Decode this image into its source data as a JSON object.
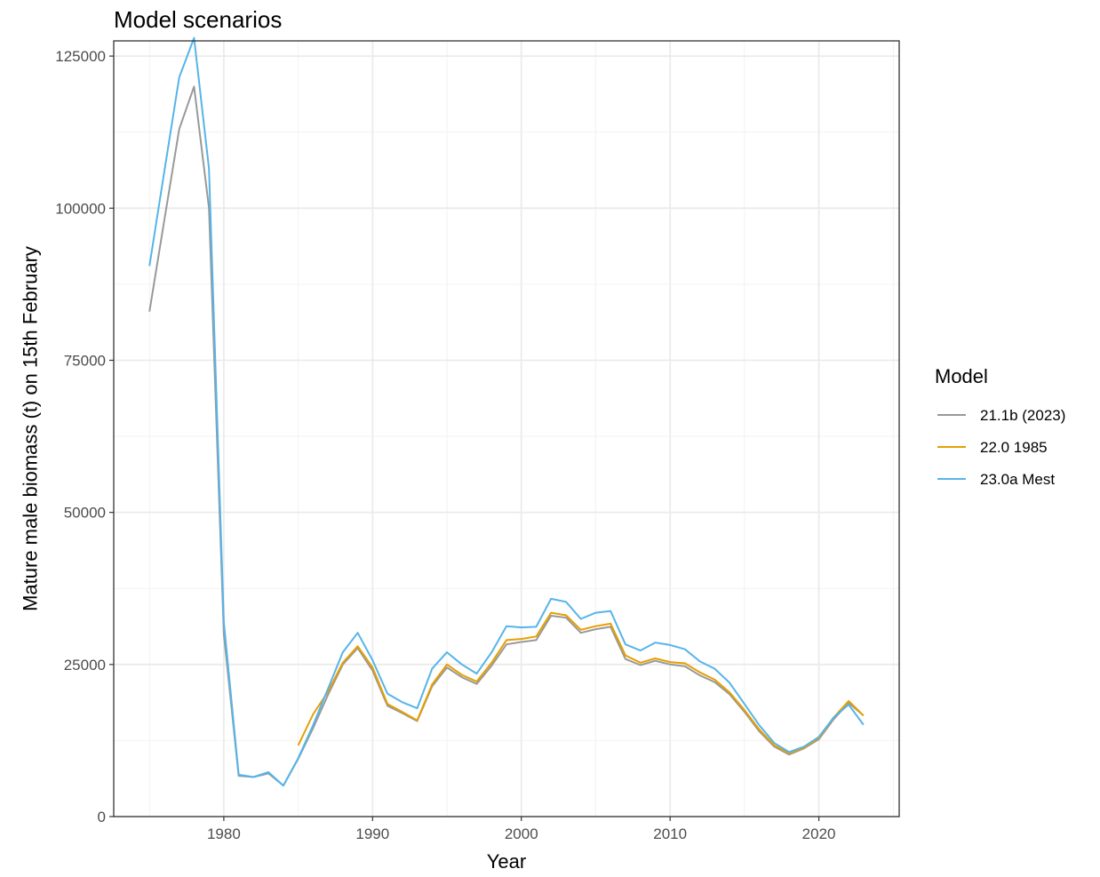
{
  "chart_data": {
    "type": "line",
    "title": "Model scenarios",
    "xlabel": "Year",
    "ylabel": "Mature male biomass (t) on 15th February",
    "xlim": [
      1972.6,
      2025.4
    ],
    "ylim": [
      0,
      127500
    ],
    "x_ticks": [
      1980,
      1990,
      2000,
      2010,
      2020
    ],
    "y_ticks": [
      0,
      25000,
      50000,
      75000,
      100000,
      125000
    ],
    "x_tick_labels": [
      "1980",
      "1990",
      "2000",
      "2010",
      "2020"
    ],
    "y_tick_labels": [
      "0",
      "25000",
      "50000",
      "75000",
      "100000",
      "125000"
    ],
    "grid": true,
    "legend": {
      "title": "Model",
      "position": "right"
    },
    "series": [
      {
        "name": "21.1b (2023)",
        "color": "#999999",
        "x": [
          1975,
          1976,
          1977,
          1978,
          1979,
          1980,
          1981,
          1982,
          1983,
          1984,
          1985,
          1986,
          1987,
          1988,
          1989,
          1990,
          1991,
          1992,
          1993,
          1994,
          1995,
          1996,
          1997,
          1998,
          1999,
          2000,
          2001,
          2002,
          2003,
          2004,
          2005,
          2006,
          2007,
          2008,
          2009,
          2010,
          2011,
          2012,
          2013,
          2014,
          2015,
          2016,
          2017,
          2018,
          2019,
          2020,
          2021,
          2022,
          2023
        ],
        "y": [
          83000,
          98000,
          113000,
          120000,
          100000,
          30000,
          6700,
          6500,
          7100,
          5100,
          9500,
          14500,
          20000,
          25000,
          27700,
          24000,
          18200,
          17000,
          15700,
          21400,
          24500,
          22900,
          21800,
          24800,
          28300,
          28700,
          29000,
          33000,
          32700,
          30200,
          30800,
          31200,
          25900,
          24900,
          25600,
          25000,
          24700,
          23200,
          22100,
          20100,
          17200,
          14000,
          11500,
          10200,
          11200,
          12700,
          16000,
          18700,
          16600
        ]
      },
      {
        "name": "22.0 1985",
        "color": "#e69f00",
        "x": [
          1985,
          1986,
          1987,
          1988,
          1989,
          1990,
          1991,
          1992,
          1993,
          1994,
          1995,
          1996,
          1997,
          1998,
          1999,
          2000,
          2001,
          2002,
          2003,
          2004,
          2005,
          2006,
          2007,
          2008,
          2009,
          2010,
          2011,
          2012,
          2013,
          2014,
          2015,
          2016,
          2017,
          2018,
          2019,
          2020,
          2021,
          2022,
          2023
        ],
        "y": [
          11700,
          16800,
          20500,
          25300,
          28000,
          24500,
          18500,
          17200,
          15800,
          21700,
          25000,
          23300,
          22200,
          25300,
          29000,
          29200,
          29600,
          33500,
          33100,
          30700,
          31300,
          31700,
          26500,
          25300,
          26000,
          25400,
          25200,
          23700,
          22500,
          20400,
          17500,
          14300,
          11700,
          10400,
          11300,
          12900,
          16300,
          19000,
          16600
        ]
      },
      {
        "name": "23.0a Mest",
        "color": "#56b4e9",
        "x": [
          1975,
          1976,
          1977,
          1978,
          1979,
          1980,
          1981,
          1982,
          1983,
          1984,
          1985,
          1986,
          1987,
          1988,
          1989,
          1990,
          1991,
          1992,
          1993,
          1994,
          1995,
          1996,
          1997,
          1998,
          1999,
          2000,
          2001,
          2002,
          2003,
          2004,
          2005,
          2006,
          2007,
          2008,
          2009,
          2010,
          2011,
          2012,
          2013,
          2014,
          2015,
          2016,
          2017,
          2018,
          2019,
          2020,
          2021,
          2022,
          2023
        ],
        "y": [
          90500,
          106000,
          121500,
          128000,
          106500,
          32000,
          6900,
          6500,
          7300,
          5100,
          9600,
          15000,
          21000,
          27000,
          30200,
          25700,
          20200,
          18800,
          17800,
          24300,
          27000,
          25000,
          23500,
          27000,
          31300,
          31100,
          31200,
          35800,
          35300,
          32500,
          33500,
          33800,
          28300,
          27300,
          28600,
          28200,
          27500,
          25500,
          24300,
          22000,
          18500,
          15000,
          12100,
          10600,
          11500,
          13100,
          16300,
          18400,
          15100
        ]
      }
    ]
  }
}
